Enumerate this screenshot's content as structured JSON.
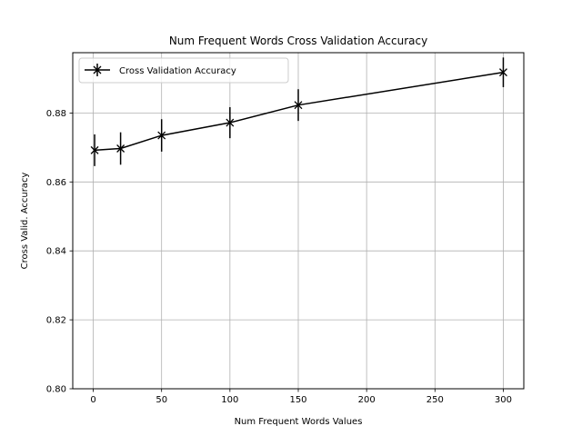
{
  "chart_data": {
    "type": "line",
    "title": "Num Frequent Words Cross Validation Accuracy",
    "xlabel": "Num Frequent Words Values",
    "ylabel": "Cross Valid. Accuracy",
    "xlim": [
      -15,
      315
    ],
    "ylim": [
      0.8,
      0.8975
    ],
    "xticks": [
      0,
      50,
      100,
      150,
      200,
      250,
      300
    ],
    "xtick_labels": [
      "0",
      "50",
      "100",
      "150",
      "200",
      "250",
      "300"
    ],
    "yticks": [
      0.8,
      0.82,
      0.84,
      0.86,
      0.88
    ],
    "ytick_labels": [
      "0.80",
      "0.82",
      "0.84",
      "0.86",
      "0.88"
    ],
    "grid": true,
    "legend_position": "upper-left",
    "series": [
      {
        "name": "Cross Validation Accuracy",
        "color": "#000000",
        "marker": "x",
        "x": [
          1,
          20,
          50,
          100,
          150,
          300
        ],
        "y": [
          0.8692,
          0.8697,
          0.8735,
          0.8772,
          0.8823,
          0.8918
        ],
        "yerr": [
          0.0046,
          0.0047,
          0.0047,
          0.0045,
          0.0046,
          0.0043
        ]
      }
    ]
  }
}
